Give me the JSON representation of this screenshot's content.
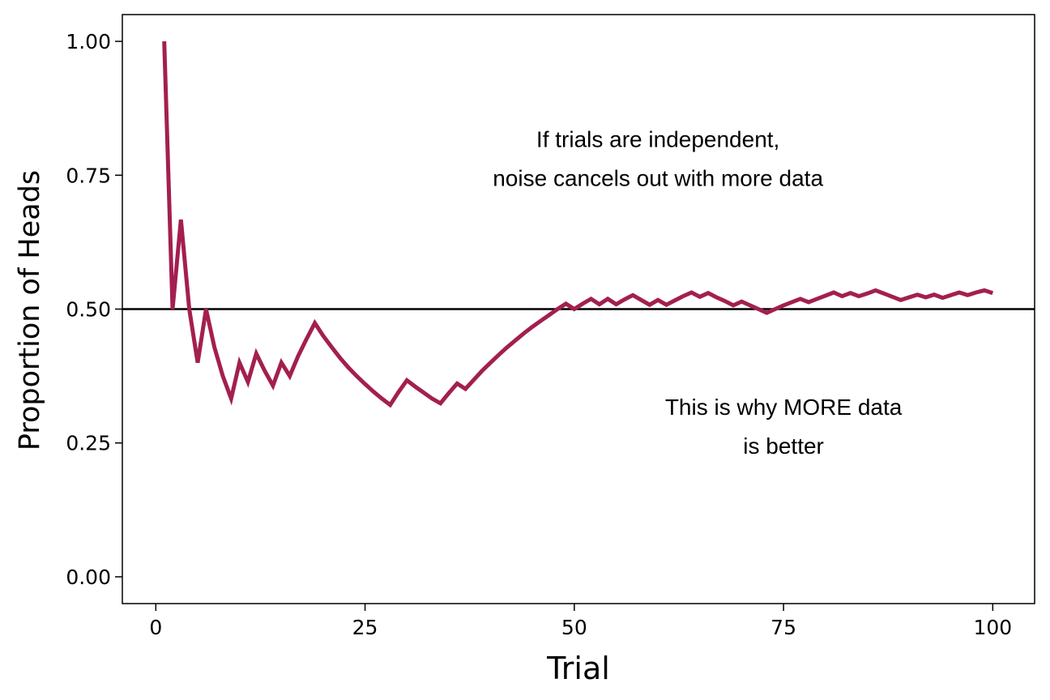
{
  "chart_data": {
    "type": "line",
    "xlabel": "Trial",
    "ylabel": "Proportion of Heads",
    "xlim": [
      -4,
      105
    ],
    "ylim": [
      -0.05,
      1.05
    ],
    "x_ticks": [
      0,
      25,
      50,
      75,
      100
    ],
    "x_tick_labels": [
      "0",
      "25",
      "50",
      "75",
      "100"
    ],
    "y_ticks": [
      0,
      0.25,
      0.5,
      0.75,
      1.0
    ],
    "y_tick_labels": [
      "0.00",
      "0.25",
      "0.50",
      "0.75",
      "1.00"
    ],
    "reference_line": {
      "y": 0.5,
      "color": "#000000"
    },
    "grid": false,
    "legend": "none",
    "annotations": [
      {
        "lines": [
          "If trials are independent,",
          "noise cancels out with more data"
        ],
        "x": 60,
        "y": 0.78
      },
      {
        "lines": [
          "This is why MORE data",
          "is better"
        ],
        "x": 75,
        "y": 0.28
      }
    ],
    "series": [
      {
        "color": "#A31F4F",
        "x": [
          1,
          2,
          3,
          4,
          5,
          6,
          7,
          8,
          9,
          10,
          11,
          12,
          13,
          14,
          15,
          16,
          17,
          18,
          19,
          20,
          21,
          22,
          23,
          24,
          25,
          26,
          27,
          28,
          29,
          30,
          31,
          32,
          33,
          34,
          35,
          36,
          37,
          38,
          39,
          40,
          41,
          42,
          43,
          44,
          45,
          46,
          47,
          48,
          49,
          50,
          51,
          52,
          53,
          54,
          55,
          56,
          57,
          58,
          59,
          60,
          61,
          62,
          63,
          64,
          65,
          66,
          67,
          68,
          69,
          70,
          71,
          72,
          73,
          74,
          75,
          76,
          77,
          78,
          79,
          80,
          81,
          82,
          83,
          84,
          85,
          86,
          87,
          88,
          89,
          90,
          91,
          92,
          93,
          94,
          95,
          96,
          97,
          98,
          99,
          100
        ],
        "y": [
          1.0,
          0.5,
          0.667,
          0.5,
          0.4,
          0.5,
          0.429,
          0.375,
          0.333,
          0.4,
          0.364,
          0.417,
          0.385,
          0.357,
          0.4,
          0.375,
          0.412,
          0.444,
          0.474,
          0.45,
          0.429,
          0.409,
          0.391,
          0.375,
          0.36,
          0.346,
          0.333,
          0.321,
          0.345,
          0.367,
          0.355,
          0.344,
          0.333,
          0.324,
          0.343,
          0.361,
          0.351,
          0.368,
          0.385,
          0.4,
          0.415,
          0.429,
          0.442,
          0.455,
          0.467,
          0.478,
          0.489,
          0.5,
          0.51,
          0.5,
          0.51,
          0.519,
          0.509,
          0.519,
          0.509,
          0.518,
          0.526,
          0.517,
          0.508,
          0.517,
          0.508,
          0.516,
          0.524,
          0.531,
          0.523,
          0.53,
          0.522,
          0.515,
          0.507,
          0.514,
          0.507,
          0.5,
          0.493,
          0.5,
          0.507,
          0.513,
          0.519,
          0.513,
          0.519,
          0.525,
          0.531,
          0.524,
          0.53,
          0.524,
          0.529,
          0.535,
          0.529,
          0.523,
          0.517,
          0.522,
          0.527,
          0.522,
          0.527,
          0.521,
          0.526,
          0.531,
          0.526,
          0.531,
          0.535,
          0.53
        ]
      }
    ]
  }
}
